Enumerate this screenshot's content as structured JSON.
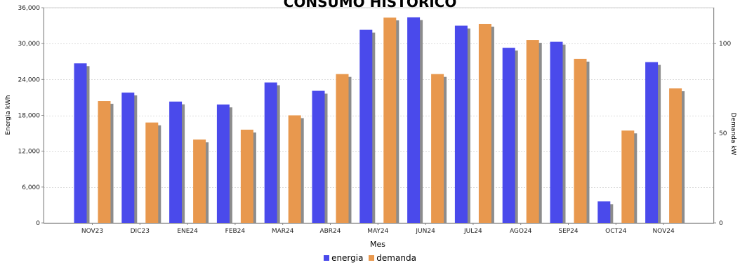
{
  "chart_data": {
    "type": "bar",
    "title": "CONSUMO HISTÓRICO",
    "xlabel": "Mes",
    "ylabel_left": "Energia kWh",
    "ylabel_right": "Demanda kW",
    "categories": [
      "NOV23",
      "DIC23",
      "ENE24",
      "FEB24",
      "MAR24",
      "ABR24",
      "MAY24",
      "JUN24",
      "JUL24",
      "AGO24",
      "SEP24",
      "OCT24",
      "NOV24"
    ],
    "left_axis": {
      "min": 0,
      "max": 36000,
      "ticks": [
        "0",
        "6,000",
        "12,000",
        "18,000",
        "24,000",
        "30,000",
        "36,000"
      ]
    },
    "right_axis": {
      "min": 0,
      "max": 120,
      "ticks": [
        "0",
        "50",
        "100"
      ]
    },
    "series": [
      {
        "name": "energia",
        "axis": "left",
        "color": "#4a4aeb",
        "values": [
          26700,
          21800,
          20300,
          19800,
          23500,
          22100,
          32300,
          34400,
          33000,
          29300,
          30300,
          3600,
          26900
        ]
      },
      {
        "name": "demanda",
        "axis": "right",
        "color": "#e8984e",
        "values": [
          68,
          56,
          46.5,
          52,
          60,
          83,
          114.5,
          83,
          111,
          102,
          91.5,
          51.5,
          75
        ]
      }
    ],
    "grid": true,
    "legend": "bottom-center"
  }
}
